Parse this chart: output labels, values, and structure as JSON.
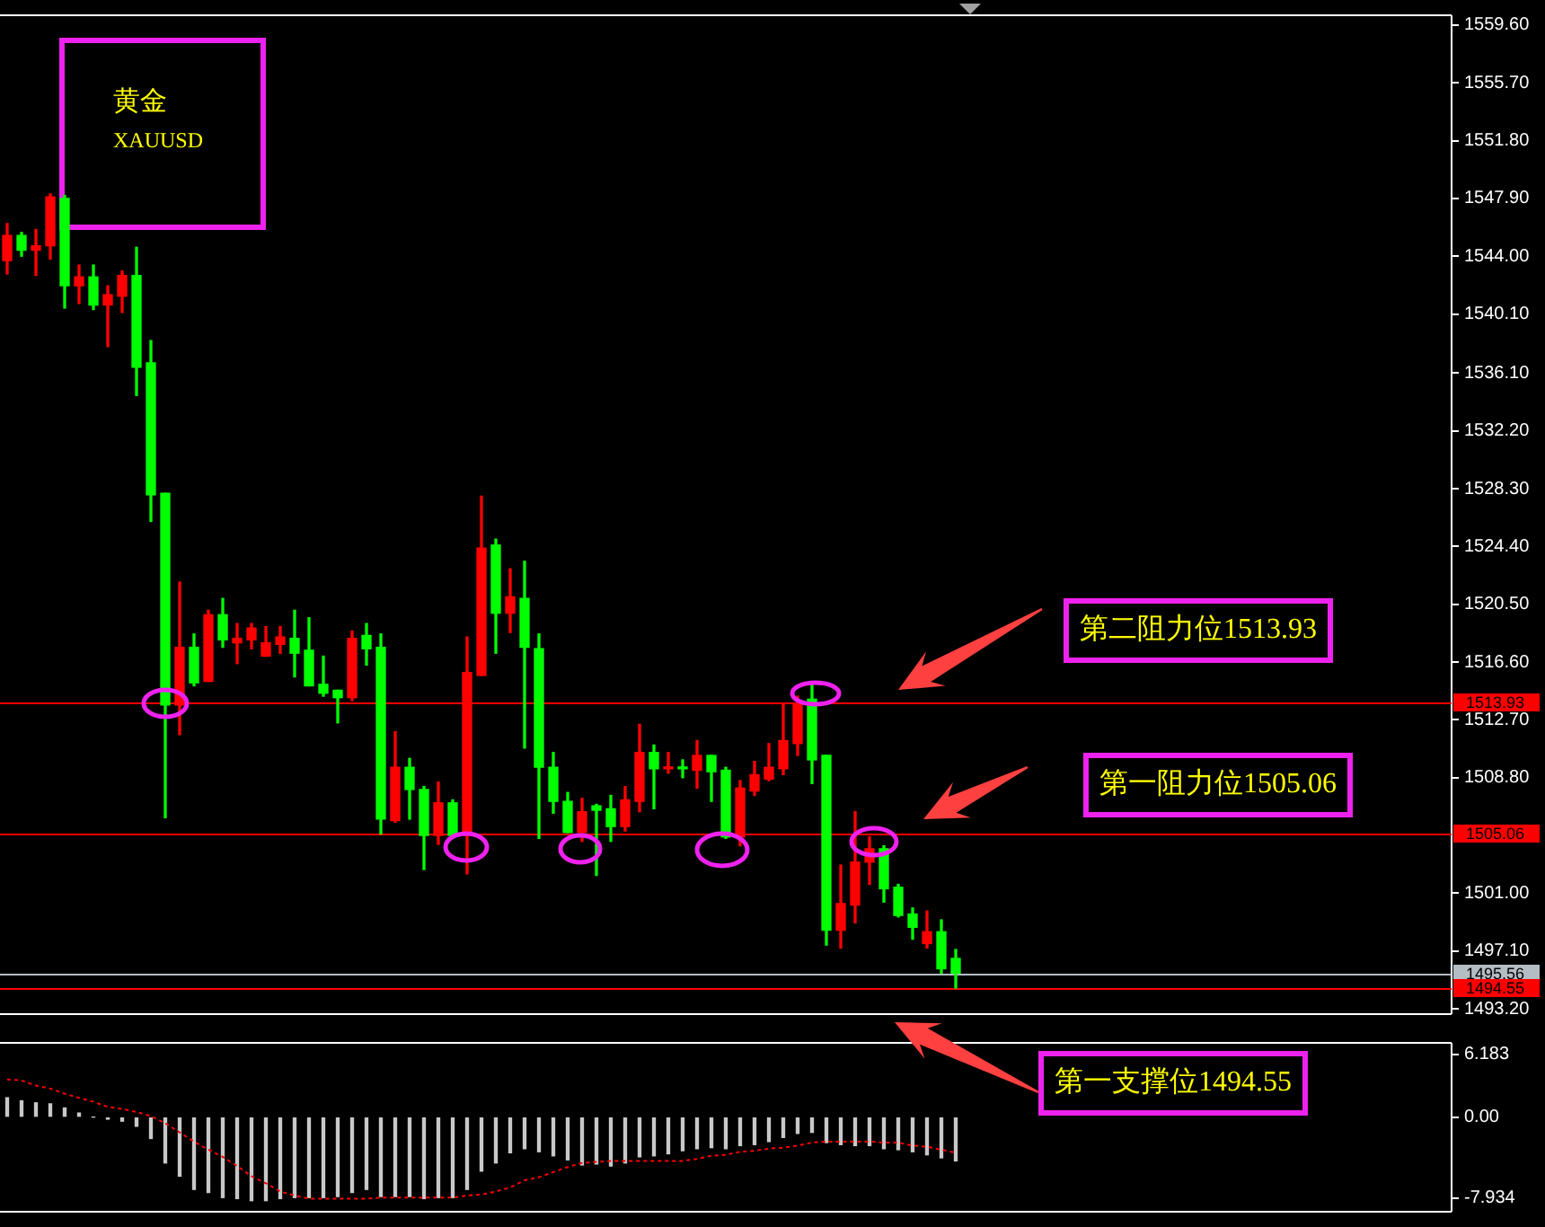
{
  "chart_data": [
    {
      "type": "candlestick",
      "title": "黄金",
      "subtitle": "XAUUSD",
      "categories": [
        null,
        null,
        null,
        null,
        null,
        null,
        null,
        null,
        null,
        null,
        null,
        null,
        null,
        null,
        null,
        null,
        null,
        null,
        null,
        null,
        null,
        null,
        null,
        null,
        null,
        null,
        null,
        null,
        null,
        null,
        null,
        null,
        null,
        null,
        null,
        null,
        null,
        null,
        null,
        null,
        null,
        null,
        null,
        null,
        null,
        null,
        null,
        null,
        null,
        null,
        null,
        null,
        null,
        null,
        null,
        null,
        null,
        null,
        null,
        null,
        null,
        null,
        null,
        null,
        null,
        null,
        null,
        null,
        null,
        null,
        null,
        null,
        null,
        null,
        null,
        null,
        null,
        null,
        null,
        null,
        null,
        null,
        null,
        null,
        null,
        null,
        null,
        null,
        null,
        null,
        null,
        null,
        null,
        null,
        null,
        null,
        null,
        null,
        null,
        null,
        null
      ],
      "ohlc": [
        [
          1543.7,
          1546.2,
          1542.8,
          1545.4
        ],
        [
          1545.4,
          1545.6,
          1544.0,
          1544.4
        ],
        [
          1544.4,
          1545.8,
          1542.7,
          1544.7
        ],
        [
          1544.7,
          1548.2,
          1543.8,
          1548.0
        ],
        [
          1547.9,
          1548.1,
          1540.5,
          1542.0
        ],
        [
          1542.0,
          1543.4,
          1540.8,
          1542.6
        ],
        [
          1542.6,
          1543.4,
          1540.4,
          1540.7
        ],
        [
          1540.7,
          1542.0,
          1537.9,
          1541.4
        ],
        [
          1541.3,
          1543.0,
          1540.2,
          1542.7
        ],
        [
          1542.7,
          1544.6,
          1534.6,
          1536.5
        ],
        [
          1536.8,
          1538.3,
          1526.1,
          1527.9
        ],
        [
          1528.0,
          1528.0,
          1506.1,
          1513.7
        ],
        [
          1513.7,
          1522.0,
          1511.7,
          1517.6
        ],
        [
          1517.6,
          1518.5,
          1515.0,
          1515.2
        ],
        [
          1515.3,
          1520.1,
          1515.3,
          1519.8
        ],
        [
          1519.8,
          1520.9,
          1517.6,
          1518.1
        ],
        [
          1517.9,
          1519.2,
          1516.5,
          1518.2
        ],
        [
          1518.1,
          1519.2,
          1517.5,
          1518.9
        ],
        [
          1517.0,
          1519.0,
          1517.0,
          1517.9
        ],
        [
          1517.8,
          1519.0,
          1517.2,
          1518.3
        ],
        [
          1518.2,
          1520.1,
          1515.6,
          1517.2
        ],
        [
          1517.4,
          1519.6,
          1515.0,
          1515.0
        ],
        [
          1515.1,
          1517.0,
          1514.3,
          1514.5
        ],
        [
          1514.7,
          1514.7,
          1512.5,
          1514.2
        ],
        [
          1514.2,
          1518.7,
          1514.0,
          1518.2
        ],
        [
          1518.4,
          1519.2,
          1516.4,
          1517.5
        ],
        [
          1517.6,
          1518.5,
          1505.0,
          1506.0
        ],
        [
          1505.9,
          1511.9,
          1505.8,
          1509.5
        ],
        [
          1509.5,
          1510.1,
          1506.0,
          1508.0
        ],
        [
          1508.0,
          1508.2,
          1502.6,
          1504.9
        ],
        [
          1504.9,
          1508.5,
          1504.3,
          1507.1
        ],
        [
          1507.1,
          1507.3,
          1504.8,
          1504.9
        ],
        [
          1504.9,
          1518.3,
          1502.3,
          1515.9
        ],
        [
          1515.7,
          1527.8,
          1515.7,
          1524.3
        ],
        [
          1524.5,
          1524.9,
          1517.2,
          1519.9
        ],
        [
          1519.9,
          1522.9,
          1518.6,
          1521.0
        ],
        [
          1520.9,
          1523.4,
          1510.8,
          1517.6
        ],
        [
          1517.5,
          1518.5,
          1504.7,
          1509.5
        ],
        [
          1509.5,
          1510.5,
          1506.4,
          1507.2
        ],
        [
          1507.2,
          1507.8,
          1505.1,
          1505.1
        ],
        [
          1505.1,
          1507.4,
          1504.5,
          1506.5
        ],
        [
          1506.9,
          1507.0,
          1502.2,
          1506.6
        ],
        [
          1506.7,
          1507.6,
          1504.5,
          1505.5
        ],
        [
          1505.5,
          1508.2,
          1505.2,
          1507.3
        ],
        [
          1507.2,
          1512.4,
          1506.5,
          1510.5
        ],
        [
          1510.5,
          1511.0,
          1506.7,
          1509.4
        ],
        [
          1509.4,
          1510.5,
          1509.1,
          1509.5
        ],
        [
          1509.5,
          1510.0,
          1508.8,
          1509.4
        ],
        [
          1509.3,
          1511.3,
          1508.1,
          1510.3
        ],
        [
          1510.3,
          1510.3,
          1507.2,
          1509.2
        ],
        [
          1509.3,
          1509.5,
          1504.7,
          1504.8
        ],
        [
          1504.8,
          1508.6,
          1504.2,
          1508.1
        ],
        [
          1507.9,
          1509.9,
          1507.6,
          1509.0
        ],
        [
          1508.7,
          1511.1,
          1508.6,
          1509.5
        ],
        [
          1509.4,
          1513.8,
          1509.0,
          1511.3
        ],
        [
          1511.1,
          1514.3,
          1510.3,
          1513.8
        ],
        [
          1514.1,
          1515.2,
          1508.4,
          1510.0
        ],
        [
          1510.3,
          1510.3,
          1497.5,
          1498.5
        ],
        [
          1498.5,
          1502.9,
          1497.3,
          1500.3
        ],
        [
          1500.2,
          1506.5,
          1499.0,
          1503.1
        ],
        [
          1503.1,
          1504.8,
          1501.6,
          1504.0
        ],
        [
          1504.0,
          1504.2,
          1500.4,
          1501.3
        ],
        [
          1501.4,
          1501.6,
          1499.4,
          1499.5
        ],
        [
          1499.6,
          1500.0,
          1497.9,
          1498.7
        ],
        [
          1497.6,
          1499.8,
          1497.3,
          1498.4
        ],
        [
          1498.4,
          1499.2,
          1495.6,
          1495.9
        ],
        [
          1496.6,
          1497.2,
          1494.6,
          1495.6
        ],
        null,
        null,
        null,
        null,
        null,
        null,
        null,
        null,
        null,
        null,
        null,
        null,
        null,
        null,
        null,
        null,
        null,
        null,
        null,
        null,
        null,
        null,
        null,
        null,
        null,
        null,
        null,
        null,
        null,
        null,
        null,
        null,
        null,
        null
      ],
      "colors": [
        "#ff0000",
        "#00ff00",
        "#ff0000",
        "#ff0000",
        "#00ff00",
        "#ff0000",
        "#00ff00",
        "#ff0000",
        "#ff0000",
        "#00ff00",
        "#00ff00",
        "#00ff00",
        "#ff0000",
        "#00ff00",
        "#ff0000",
        "#00ff00",
        "#ff0000",
        "#ff0000",
        "#ff0000",
        "#ff0000",
        "#00ff00",
        "#00ff00",
        "#00ff00",
        "#00ff00",
        "#ff0000",
        "#00ff00",
        "#00ff00",
        "#ff0000",
        "#00ff00",
        "#00ff00",
        "#ff0000",
        "#00ff00",
        "#ff0000",
        "#ff0000",
        "#00ff00",
        "#ff0000",
        "#00ff00",
        "#00ff00",
        "#00ff00",
        "#00ff00",
        "#ff0000",
        "#00ff00",
        "#00ff00",
        "#ff0000",
        "#ff0000",
        "#00ff00",
        "#ff0000",
        "#00ff00",
        "#ff0000",
        "#00ff00",
        "#00ff00",
        "#ff0000",
        "#ff0000",
        "#ff0000",
        "#ff0000",
        "#ff0000",
        "#00ff00",
        "#00ff00",
        "#ff0000",
        "#ff0000",
        "#ff0000",
        "#00ff00",
        "#00ff00",
        "#00ff00",
        "#ff0000",
        "#00ff00",
        "#00ff00",
        null,
        null,
        null,
        null,
        null,
        null,
        null,
        null,
        null,
        null,
        null,
        null,
        null,
        null,
        null,
        null,
        null,
        null,
        null,
        null,
        null,
        null,
        null,
        null,
        null,
        null,
        null,
        null,
        null,
        null,
        null,
        null,
        null,
        null
      ],
      "ylim": [
        1492.9,
        1560.2
      ],
      "yticks": [
        {
          "value": 1559.6,
          "label": "1559.60"
        },
        {
          "value": 1555.7,
          "label": "1555.70"
        },
        {
          "value": 1551.8,
          "label": "1551.80"
        },
        {
          "value": 1547.9,
          "label": "1547.90"
        },
        {
          "value": 1544,
          "label": "1544.00"
        },
        {
          "value": 1540.1,
          "label": "1540.10"
        },
        {
          "value": 1536.1,
          "label": "1536.10"
        },
        {
          "value": 1532.2,
          "label": "1532.20"
        },
        {
          "value": 1528.3,
          "label": "1528.30"
        },
        {
          "value": 1524.4,
          "label": "1524.40"
        },
        {
          "value": 1520.5,
          "label": "1520.50"
        },
        {
          "value": 1516.6,
          "label": "1516.60"
        },
        {
          "value": 1512.7,
          "label": "1512.70"
        },
        {
          "value": 1508.8,
          "label": "1508.80"
        },
        {
          "value": 1501,
          "label": "1501.00"
        },
        {
          "value": 1497.1,
          "label": "1497.10"
        },
        {
          "value": 1493.2,
          "label": "1493.20"
        }
      ],
      "tick_labels": "y",
      "ref_lines": [
        {
          "axis": "y",
          "value": 1513.93,
          "label": "1513.93",
          "color": "#ff0000"
        },
        {
          "axis": "y",
          "value": 1505.06,
          "label": "1505.06",
          "color": "#ff0000"
        },
        {
          "axis": "y",
          "value": 1495.56,
          "label": "1495.56",
          "color": "#b4bcc4"
        },
        {
          "axis": "y",
          "value": 1494.55,
          "label": "1494.55",
          "color": "#ff0000"
        }
      ],
      "annotations": [
        "第二阻力位1513.93",
        "第一阻力位1505.06",
        "第一支撑位1494.55"
      ]
    },
    {
      "type": "bar",
      "categories": [
        null,
        null,
        null,
        null,
        null,
        null,
        null,
        null,
        null,
        null,
        null,
        null,
        null,
        null,
        null,
        null,
        null,
        null,
        null,
        null,
        null,
        null,
        null,
        null,
        null,
        null,
        null,
        null,
        null,
        null,
        null,
        null,
        null,
        null,
        null,
        null,
        null,
        null,
        null,
        null,
        null,
        null,
        null,
        null,
        null,
        null,
        null,
        null,
        null,
        null,
        null,
        null,
        null,
        null,
        null,
        null,
        null,
        null,
        null,
        null,
        null,
        null,
        null,
        null,
        null,
        null,
        null,
        null,
        null,
        null,
        null,
        null,
        null,
        null,
        null,
        null,
        null,
        null,
        null,
        null,
        null,
        null,
        null,
        null,
        null,
        null,
        null,
        null,
        null,
        null,
        null,
        null,
        null,
        null,
        null,
        null,
        null,
        null,
        null,
        null,
        null
      ],
      "series": [
        {
          "type": "bar",
          "color": "#c8c8c8",
          "values": [
            1.9,
            1.6,
            1.4,
            1.3,
            0.9,
            0.4,
            0,
            -0.2,
            -0.4,
            -0.9,
            -2.1,
            -4.5,
            -5.8,
            -7.1,
            -7.4,
            -7.9,
            -8.0,
            -8.2,
            -8.2,
            -8.0,
            -7.9,
            -7.9,
            -7.9,
            -7.8,
            -7.4,
            -7.1,
            -7.8,
            -7.8,
            -7.8,
            -8.0,
            -7.9,
            -7.9,
            -7.1,
            -5.3,
            -4.5,
            -3.5,
            -3.1,
            -3.4,
            -3.8,
            -4.2,
            -4.7,
            -4.6,
            -4.8,
            -4.5,
            -3.9,
            -3.8,
            -3.6,
            -3.3,
            -3.1,
            -3.0,
            -3.1,
            -2.8,
            -2.7,
            -2.4,
            -2.0,
            -1.6,
            -1.5,
            -2.5,
            -2.7,
            -2.8,
            -2.8,
            -3.1,
            -3.2,
            -3.4,
            -3.7,
            -4.0,
            -4.3,
            null,
            null,
            null,
            null,
            null,
            null,
            null,
            null,
            null,
            null,
            null,
            null,
            null,
            null,
            null,
            null,
            null,
            null,
            null,
            null,
            null,
            null,
            null,
            null,
            null,
            null,
            null,
            null,
            null,
            null,
            null,
            null,
            null,
            null
          ]
        },
        {
          "type": "line",
          "color": "#ff0000",
          "line_style": "dotted",
          "values": [
            3.7,
            3.6,
            3.1,
            2.8,
            2.3,
            1.9,
            1.5,
            1.0,
            0.8,
            0.5,
            0.1,
            -0.6,
            -1.5,
            -2.4,
            -3.2,
            -3.9,
            -4.8,
            -5.8,
            -6.5,
            -7.3,
            -7.7,
            -8.0,
            -8.0,
            -8.0,
            -8.0,
            -8.0,
            -7.9,
            -7.9,
            -7.9,
            -7.9,
            -7.9,
            -7.9,
            -7.7,
            -7.6,
            -7.3,
            -6.9,
            -6.2,
            -5.9,
            -5.4,
            -4.9,
            -4.5,
            -4.4,
            -4.3,
            -4.3,
            -4.3,
            -4.3,
            -4.3,
            -4.3,
            -4.1,
            -3.8,
            -3.7,
            -3.4,
            -3.3,
            -3.1,
            -3.0,
            -2.8,
            -2.5,
            -2.4,
            -2.4,
            -2.4,
            -2.4,
            -2.5,
            -2.5,
            -2.8,
            -2.9,
            -3.2,
            -3.5,
            null,
            null,
            null,
            null,
            null,
            null,
            null,
            null,
            null,
            null,
            null,
            null,
            null,
            null,
            null,
            null,
            null,
            null,
            null,
            null,
            null,
            null,
            null,
            null,
            null,
            null,
            null,
            null,
            null,
            null,
            null,
            null,
            null,
            null
          ]
        }
      ],
      "ylim": [
        -9.2,
        7.2
      ],
      "yticks": [
        6.183,
        {
          "value": 0,
          "label": "0.00"
        },
        -7.934
      ],
      "tick_labels": "y"
    }
  ]
}
